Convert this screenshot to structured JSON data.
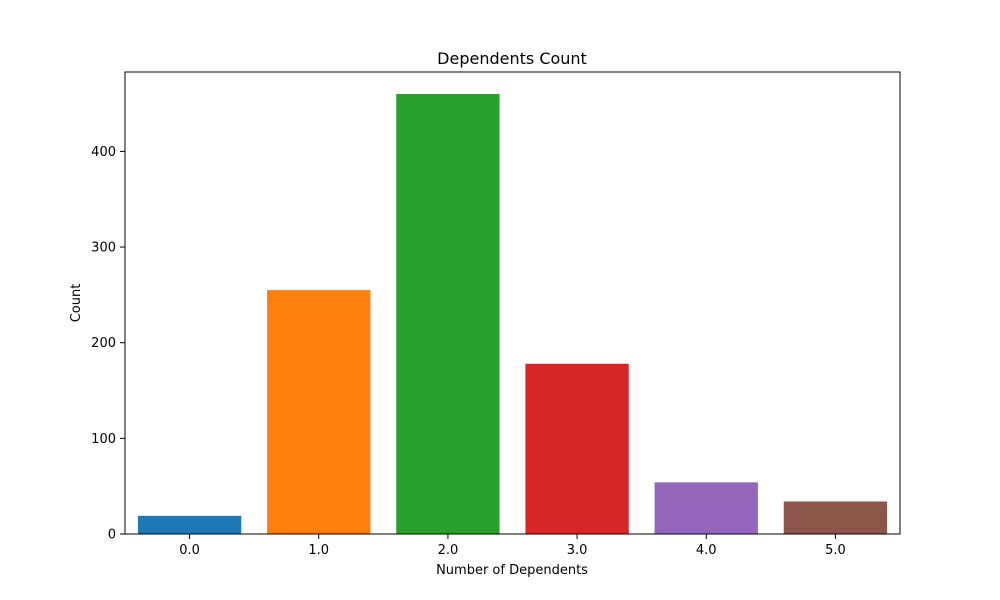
{
  "chart_data": {
    "type": "bar",
    "title": "Dependents Count",
    "xlabel": "Number of Dependents",
    "ylabel": "Count",
    "categories": [
      "0.0",
      "1.0",
      "2.0",
      "3.0",
      "4.0",
      "5.0"
    ],
    "values": [
      19,
      255,
      460,
      178,
      54,
      34
    ],
    "colors": [
      "#1f77b4",
      "#ff7f0e",
      "#2ca02c",
      "#d62728",
      "#9467bd",
      "#8c564b"
    ],
    "ylim": [
      0,
      483
    ],
    "yticks": [
      0,
      100,
      200,
      300,
      400
    ],
    "grid": false,
    "legend": "none"
  }
}
